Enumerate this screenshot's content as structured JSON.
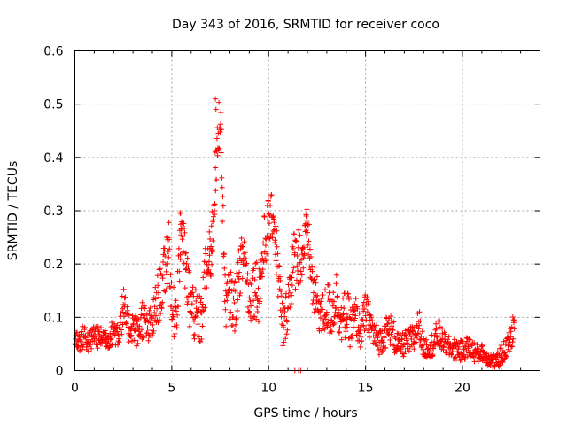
{
  "chart_data": {
    "type": "scatter",
    "title": "Day 343 of 2016, SRMTID for receiver coco",
    "xlabel": "GPS time / hours",
    "ylabel": "SRMTID / TECUs",
    "xlim": [
      0,
      24
    ],
    "ylim": [
      0,
      0.6
    ],
    "xticks": [
      0,
      5,
      10,
      15,
      20
    ],
    "yticks": [
      0,
      0.1,
      0.2,
      0.3,
      0.4,
      0.5,
      0.6
    ],
    "xtick_labels": [
      "0",
      "5",
      "10",
      "15",
      "20"
    ],
    "ytick_labels": [
      "0",
      "0.1",
      "0.2",
      "0.3",
      "0.4",
      "0.5",
      "0.6"
    ],
    "grid": true,
    "marker": "+",
    "color": "#ff0000",
    "series": [
      {
        "name": "SRMTID",
        "x": [
          0.0,
          0.25,
          0.5,
          0.75,
          1.0,
          1.25,
          1.5,
          1.75,
          2.0,
          2.25,
          2.5,
          2.75,
          3.0,
          3.25,
          3.5,
          3.75,
          4.0,
          4.25,
          4.5,
          4.75,
          4.85,
          5.0,
          5.25,
          5.4,
          5.5,
          5.75,
          6.0,
          6.25,
          6.5,
          6.75,
          6.9,
          7.0,
          7.1,
          7.2,
          7.3,
          7.5,
          7.75,
          8.0,
          8.25,
          8.5,
          8.75,
          9.0,
          9.25,
          9.5,
          9.75,
          10.0,
          10.25,
          10.5,
          10.75,
          11.0,
          11.25,
          11.5,
          11.75,
          11.9,
          12.0,
          12.25,
          12.5,
          12.75,
          13.0,
          13.25,
          13.5,
          13.75,
          14.0,
          14.25,
          14.5,
          14.75,
          15.0,
          15.25,
          15.5,
          15.75,
          16.0,
          16.25,
          16.5,
          16.75,
          17.0,
          17.25,
          17.5,
          17.75,
          18.0,
          18.25,
          18.5,
          18.75,
          19.0,
          19.25,
          19.5,
          19.75,
          20.0,
          20.25,
          20.5,
          20.75,
          21.0,
          21.25,
          21.5,
          21.75,
          22.0,
          22.25,
          22.5,
          22.7
        ],
        "y": [
          0.06,
          0.055,
          0.065,
          0.05,
          0.07,
          0.06,
          0.065,
          0.06,
          0.075,
          0.07,
          0.12,
          0.08,
          0.085,
          0.07,
          0.1,
          0.075,
          0.09,
          0.13,
          0.16,
          0.21,
          0.25,
          0.1,
          0.12,
          0.22,
          0.28,
          0.17,
          0.12,
          0.1,
          0.09,
          0.18,
          0.2,
          0.22,
          0.26,
          0.34,
          0.38,
          0.5,
          0.13,
          0.14,
          0.12,
          0.19,
          0.22,
          0.13,
          0.16,
          0.15,
          0.23,
          0.28,
          0.29,
          0.18,
          0.07,
          0.13,
          0.2,
          0.22,
          0.21,
          0.25,
          0.27,
          0.16,
          0.13,
          0.1,
          0.12,
          0.11,
          0.14,
          0.09,
          0.11,
          0.08,
          0.1,
          0.07,
          0.11,
          0.09,
          0.06,
          0.055,
          0.07,
          0.08,
          0.06,
          0.045,
          0.05,
          0.055,
          0.06,
          0.09,
          0.04,
          0.045,
          0.05,
          0.07,
          0.055,
          0.045,
          0.04,
          0.04,
          0.035,
          0.045,
          0.04,
          0.03,
          0.035,
          0.025,
          0.02,
          0.015,
          0.03,
          0.04,
          0.06,
          0.09
        ],
        "spread": [
          0.02,
          0.02,
          0.025,
          0.02,
          0.025,
          0.02,
          0.02,
          0.02,
          0.025,
          0.03,
          0.04,
          0.03,
          0.03,
          0.03,
          0.04,
          0.03,
          0.04,
          0.05,
          0.05,
          0.06,
          0.04,
          0.05,
          0.05,
          0.07,
          0.04,
          0.07,
          0.06,
          0.05,
          0.05,
          0.06,
          0.05,
          0.06,
          0.06,
          0.06,
          0.05,
          0.06,
          0.05,
          0.05,
          0.05,
          0.05,
          0.05,
          0.05,
          0.06,
          0.06,
          0.06,
          0.05,
          0.04,
          0.06,
          0.04,
          0.05,
          0.06,
          0.06,
          0.05,
          0.04,
          0.04,
          0.05,
          0.05,
          0.04,
          0.05,
          0.05,
          0.05,
          0.04,
          0.05,
          0.04,
          0.04,
          0.03,
          0.04,
          0.03,
          0.03,
          0.025,
          0.03,
          0.03,
          0.03,
          0.02,
          0.025,
          0.025,
          0.03,
          0.03,
          0.02,
          0.02,
          0.025,
          0.03,
          0.02,
          0.02,
          0.02,
          0.02,
          0.02,
          0.02,
          0.02,
          0.02,
          0.015,
          0.015,
          0.015,
          0.015,
          0.02,
          0.02,
          0.025,
          0.03
        ],
        "outliers": [
          {
            "x": 11.35,
            "y": 0.0
          },
          {
            "x": 11.55,
            "y": 0.0
          },
          {
            "x": 11.65,
            "y": 0.0
          },
          {
            "x": 7.25,
            "y": 0.51
          },
          {
            "x": 7.28,
            "y": 0.49
          },
          {
            "x": 5.45,
            "y": 0.295
          }
        ]
      }
    ]
  }
}
